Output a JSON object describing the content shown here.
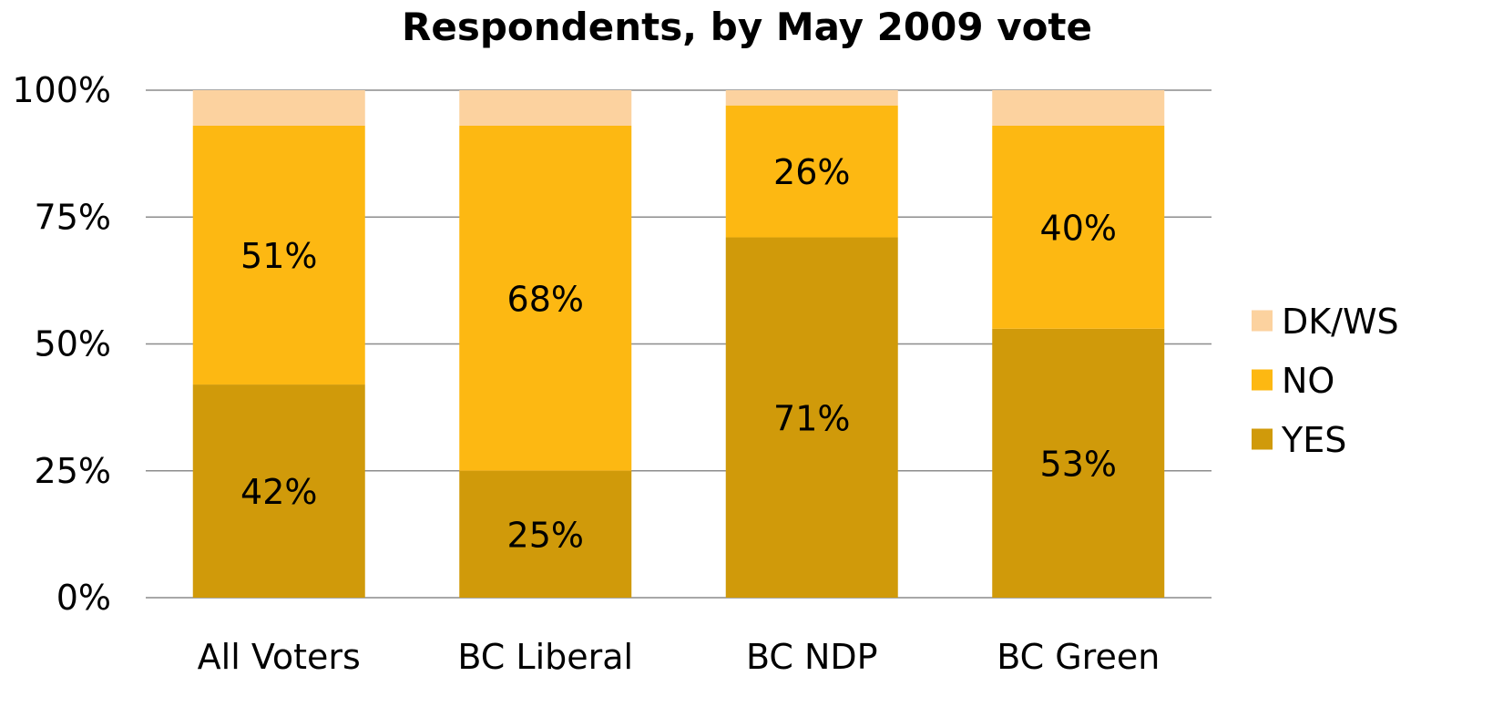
{
  "chart_data": {
    "type": "bar",
    "stacked": true,
    "title": "Respondents, by May 2009 vote",
    "xlabel": "",
    "ylabel": "",
    "ylim": [
      0,
      100
    ],
    "y_ticks": [
      "0%",
      "25%",
      "50%",
      "75%",
      "100%"
    ],
    "y_tick_values": [
      0,
      25,
      50,
      75,
      100
    ],
    "categories": [
      "All Voters",
      "BC Liberal",
      "BC NDP",
      "BC Green"
    ],
    "series": [
      {
        "name": "YES",
        "color": "#D09A0A",
        "values": [
          42,
          25,
          71,
          53
        ],
        "labels": [
          "42%",
          "25%",
          "71%",
          "53%"
        ]
      },
      {
        "name": "NO",
        "color": "#FDB812",
        "values": [
          51,
          68,
          26,
          40
        ],
        "labels": [
          "51%",
          "68%",
          "26%",
          "40%"
        ]
      },
      {
        "name": "DK/WS",
        "color": "#FCD29F",
        "values": [
          7,
          7,
          3,
          7
        ],
        "labels": [
          "",
          "",
          "",
          ""
        ]
      }
    ],
    "legend": {
      "position": "right",
      "order": [
        "DK/WS",
        "NO",
        "YES"
      ]
    },
    "grid": true
  }
}
